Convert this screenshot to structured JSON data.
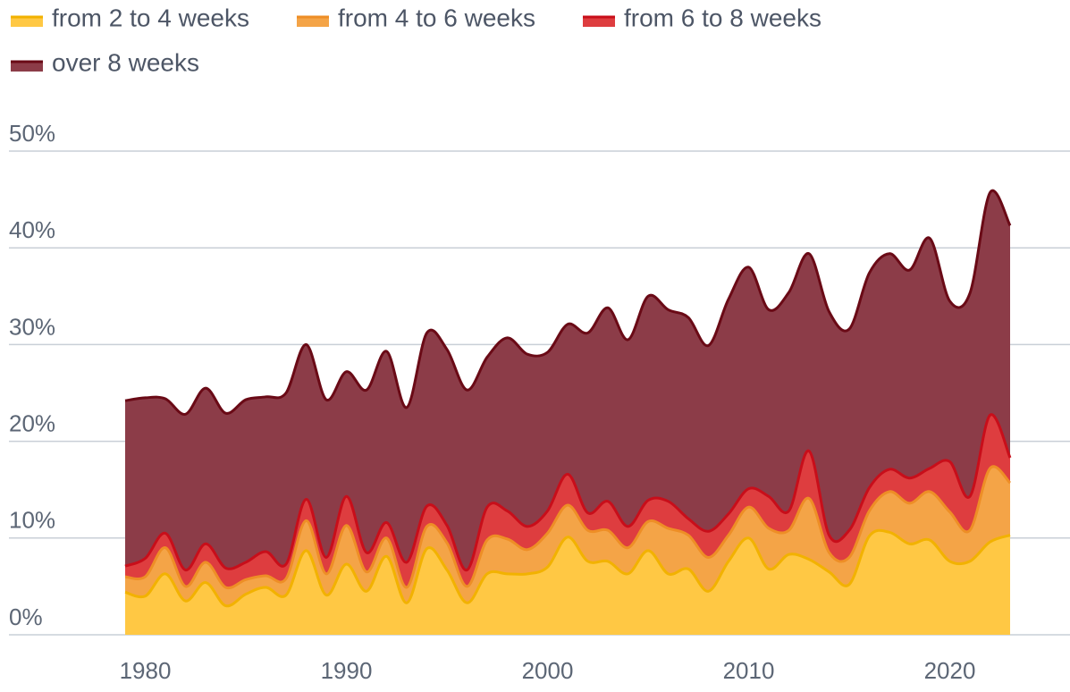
{
  "chart_data": {
    "type": "stacked_area",
    "x": [
      1979,
      1980,
      1981,
      1982,
      1983,
      1984,
      1985,
      1986,
      1987,
      1988,
      1989,
      1990,
      1991,
      1992,
      1993,
      1994,
      1995,
      1996,
      1997,
      1998,
      1999,
      2000,
      2001,
      2002,
      2003,
      2004,
      2005,
      2006,
      2007,
      2008,
      2009,
      2010,
      2011,
      2012,
      2013,
      2014,
      2015,
      2016,
      2017,
      2018,
      2019,
      2020,
      2021,
      2022,
      2023
    ],
    "series": [
      {
        "name": "from 2 to 4 weeks",
        "color": "#ffc844",
        "line_color": "#f2b200",
        "values": [
          4.4,
          4.0,
          6.3,
          3.5,
          5.4,
          3.0,
          4.2,
          4.9,
          4.1,
          8.7,
          4.1,
          7.3,
          4.5,
          8.1,
          3.3,
          8.9,
          6.7,
          3.3,
          6.3,
          6.3,
          6.3,
          7.0,
          10.1,
          7.6,
          7.6,
          6.3,
          8.7,
          6.3,
          6.8,
          4.5,
          7.6,
          10.0,
          6.8,
          8.3,
          7.8,
          6.5,
          5.2,
          10.2,
          10.6,
          9.4,
          9.8,
          7.6,
          7.6,
          9.6,
          10.3
        ]
      },
      {
        "name": "from 4 to 6 weeks",
        "color": "#f4a447",
        "line_color": "#ee8e26",
        "values": [
          1.6,
          2.0,
          2.7,
          1.5,
          2.1,
          1.9,
          1.5,
          1.2,
          1.7,
          3.1,
          2.2,
          4.0,
          2.0,
          1.9,
          1.6,
          2.3,
          2.8,
          1.7,
          3.5,
          3.6,
          2.5,
          3.5,
          3.3,
          3.2,
          3.2,
          2.7,
          3.0,
          4.7,
          3.5,
          3.5,
          2.7,
          3.2,
          4.2,
          2.5,
          6.3,
          2.0,
          2.8,
          2.6,
          4.2,
          4.2,
          5.0,
          5.1,
          3.2,
          7.6,
          5.4
        ]
      },
      {
        "name": "from 6 to 8 weeks",
        "color": "#de3d3f",
        "line_color": "#c80e1a",
        "values": [
          1.1,
          1.9,
          1.5,
          1.7,
          1.9,
          2.0,
          1.8,
          2.5,
          1.5,
          2.2,
          1.7,
          3.0,
          2.0,
          1.6,
          2.6,
          2.1,
          1.8,
          1.7,
          3.4,
          2.9,
          2.4,
          2.3,
          3.2,
          1.8,
          3.0,
          2.2,
          2.2,
          2.8,
          1.7,
          2.7,
          2.2,
          1.9,
          3.3,
          2.0,
          4.9,
          1.8,
          2.8,
          2.4,
          2.3,
          2.6,
          2.4,
          5.2,
          3.5,
          5.5,
          2.6
        ]
      },
      {
        "name": "over 8 weeks",
        "color": "#8c3c48",
        "line_color": "#6a0a16",
        "values": [
          17.1,
          16.6,
          13.9,
          16.1,
          16.1,
          16.0,
          16.8,
          16.0,
          17.7,
          16.0,
          16.3,
          12.9,
          16.8,
          17.7,
          16.0,
          17.9,
          18.2,
          18.6,
          15.5,
          17.9,
          17.8,
          16.4,
          15.5,
          18.6,
          20.0,
          19.3,
          21.1,
          19.8,
          20.8,
          19.2,
          22.2,
          22.9,
          19.3,
          22.6,
          20.4,
          23.1,
          20.8,
          22.2,
          22.3,
          21.5,
          23.8,
          16.6,
          21.0,
          23.0,
          24.0
        ]
      }
    ],
    "xlim": [
      1979,
      2023
    ],
    "xticks": [
      1980,
      1990,
      2000,
      2010,
      2020
    ],
    "ylim": [
      0,
      50
    ],
    "yticks": [
      {
        "value": 0,
        "label": "0%"
      },
      {
        "value": 10,
        "label": "10%"
      },
      {
        "value": 20,
        "label": "20%"
      },
      {
        "value": 30,
        "label": "30%"
      },
      {
        "value": 40,
        "label": "40%"
      },
      {
        "value": 50,
        "label": "50%"
      }
    ],
    "grid": true
  }
}
